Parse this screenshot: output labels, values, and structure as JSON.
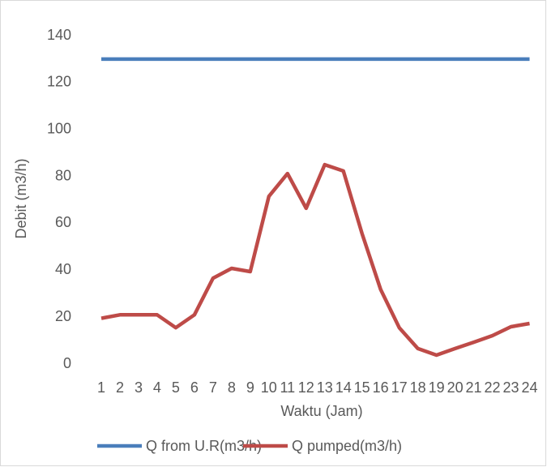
{
  "chart_data": {
    "type": "line",
    "xlabel": "Waktu (Jam)",
    "ylabel": "Debit (m3/h)",
    "categories": [
      "1",
      "2",
      "3",
      "4",
      "5",
      "6",
      "7",
      "8",
      "9",
      "10",
      "11",
      "12",
      "13",
      "14",
      "15",
      "16",
      "17",
      "18",
      "19",
      "20",
      "21",
      "22",
      "23",
      "24"
    ],
    "series": [
      {
        "name": "Q from U.R(m3/h)",
        "color": "#4a7ebb",
        "values": [
          130,
          130,
          130,
          130,
          130,
          130,
          130,
          130,
          130,
          130,
          130,
          130,
          130,
          130,
          130,
          130,
          130,
          130,
          130,
          130,
          130,
          130,
          130,
          130
        ]
      },
      {
        "name": "Q pumped(m3/h)",
        "color": "#be4b48",
        "values": [
          19.5,
          21,
          21,
          21,
          15.5,
          21,
          36.6,
          40.8,
          39.4,
          71.5,
          81.2,
          66.4,
          85,
          82.3,
          55.7,
          31.8,
          15.5,
          6.6,
          3.8,
          6.6,
          9.3,
          12.1,
          15.9,
          17.3
        ]
      }
    ],
    "ylim": [
      0,
      140
    ],
    "yticks": [
      0,
      20,
      40,
      60,
      80,
      100,
      120,
      140
    ],
    "grid": false,
    "legend": "bottom"
  }
}
